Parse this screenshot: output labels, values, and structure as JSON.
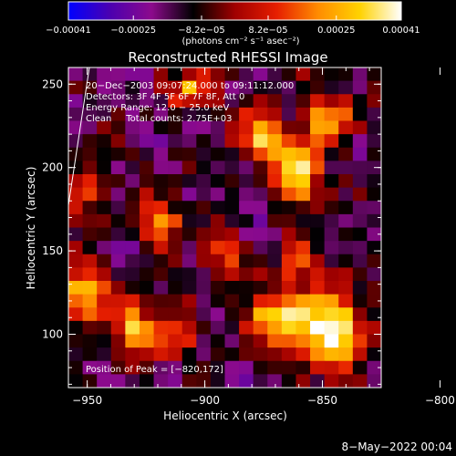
{
  "chart_data": {
    "type": "heatmap",
    "title": "Reconstructed RHESSI Image",
    "xlabel": "Heliocentric X (arcsec)",
    "ylabel": "Heliocentric Y (arcsec)",
    "xlim": [
      -958,
      -825
    ],
    "ylim": [
      68,
      260
    ],
    "x_ticks": [
      -950,
      -900,
      -850,
      -800
    ],
    "x_tick_labels": [
      "−950",
      "−900",
      "−850",
      "−800"
    ],
    "y_ticks": [
      100,
      150,
      200,
      250
    ],
    "y_tick_labels": [
      "100",
      "150",
      "200",
      "250"
    ],
    "colorbar": {
      "ticks": [
        -0.00041,
        -0.00025,
        -8.2e-05,
        8.2e-05,
        0.00025,
        0.00041
      ],
      "tick_labels": [
        "−0.00041",
        "−0.00025",
        "−8.2e−05",
        "8.2e−05",
        "0.00025",
        "0.00041"
      ],
      "units_text": "(photons cm⁻² s⁻¹ asec⁻²)",
      "stops": [
        "#0000ff",
        "#4b00b0",
        "#8c0a8c",
        "#000000",
        "#a00000",
        "#e61e00",
        "#ff8c00",
        "#ffd200",
        "#ffffff"
      ]
    },
    "annotations": [
      "20−Dec−2003 09:07:24.000 to 09:11:12.000",
      "Detectors: 3F 4F 5F 6F 7F 8F, Att 0",
      "Energy Range: 12.0 − 25.0 keV",
      "Clean     Total counts: 2.75E+03"
    ],
    "peak_text": "Position of Peak = [−820,172]",
    "peak_position": [
      -820,
      172
    ],
    "grid": false,
    "image": {
      "rows": 24,
      "cols": 22,
      "hotspots": [
        {
          "x": 0.73,
          "y": 0.33,
          "amp": 1.15,
          "sx": 0.05,
          "sy": 0.06
        },
        {
          "x": 0.62,
          "y": 0.22,
          "amp": 0.95,
          "sx": 0.05,
          "sy": 0.05
        },
        {
          "x": 0.84,
          "y": 0.16,
          "amp": 0.7,
          "sx": 0.06,
          "sy": 0.05
        },
        {
          "x": 0.83,
          "y": 0.81,
          "amp": 1.15,
          "sx": 0.08,
          "sy": 0.08
        },
        {
          "x": 0.65,
          "y": 0.78,
          "amp": 0.8,
          "sx": 0.06,
          "sy": 0.06
        },
        {
          "x": 0.05,
          "y": 0.7,
          "amp": 0.9,
          "sx": 0.04,
          "sy": 0.06
        },
        {
          "x": 0.2,
          "y": 0.79,
          "amp": 0.8,
          "sx": 0.05,
          "sy": 0.06
        },
        {
          "x": 0.06,
          "y": 0.38,
          "amp": 0.6,
          "sx": 0.04,
          "sy": 0.05
        },
        {
          "x": 0.4,
          "y": 0.07,
          "amp": 0.7,
          "sx": 0.05,
          "sy": 0.04
        },
        {
          "x": 0.3,
          "y": 0.48,
          "amp": 0.6,
          "sx": 0.05,
          "sy": 0.05
        },
        {
          "x": 0.33,
          "y": 0.86,
          "amp": 0.55,
          "sx": 0.05,
          "sy": 0.04
        },
        {
          "x": 0.72,
          "y": 0.6,
          "amp": 0.5,
          "sx": 0.04,
          "sy": 0.05
        },
        {
          "x": 0.5,
          "y": 0.58,
          "amp": 0.5,
          "sx": 0.05,
          "sy": 0.04
        }
      ]
    }
  },
  "footer_date": "8−May−2022 00:04"
}
